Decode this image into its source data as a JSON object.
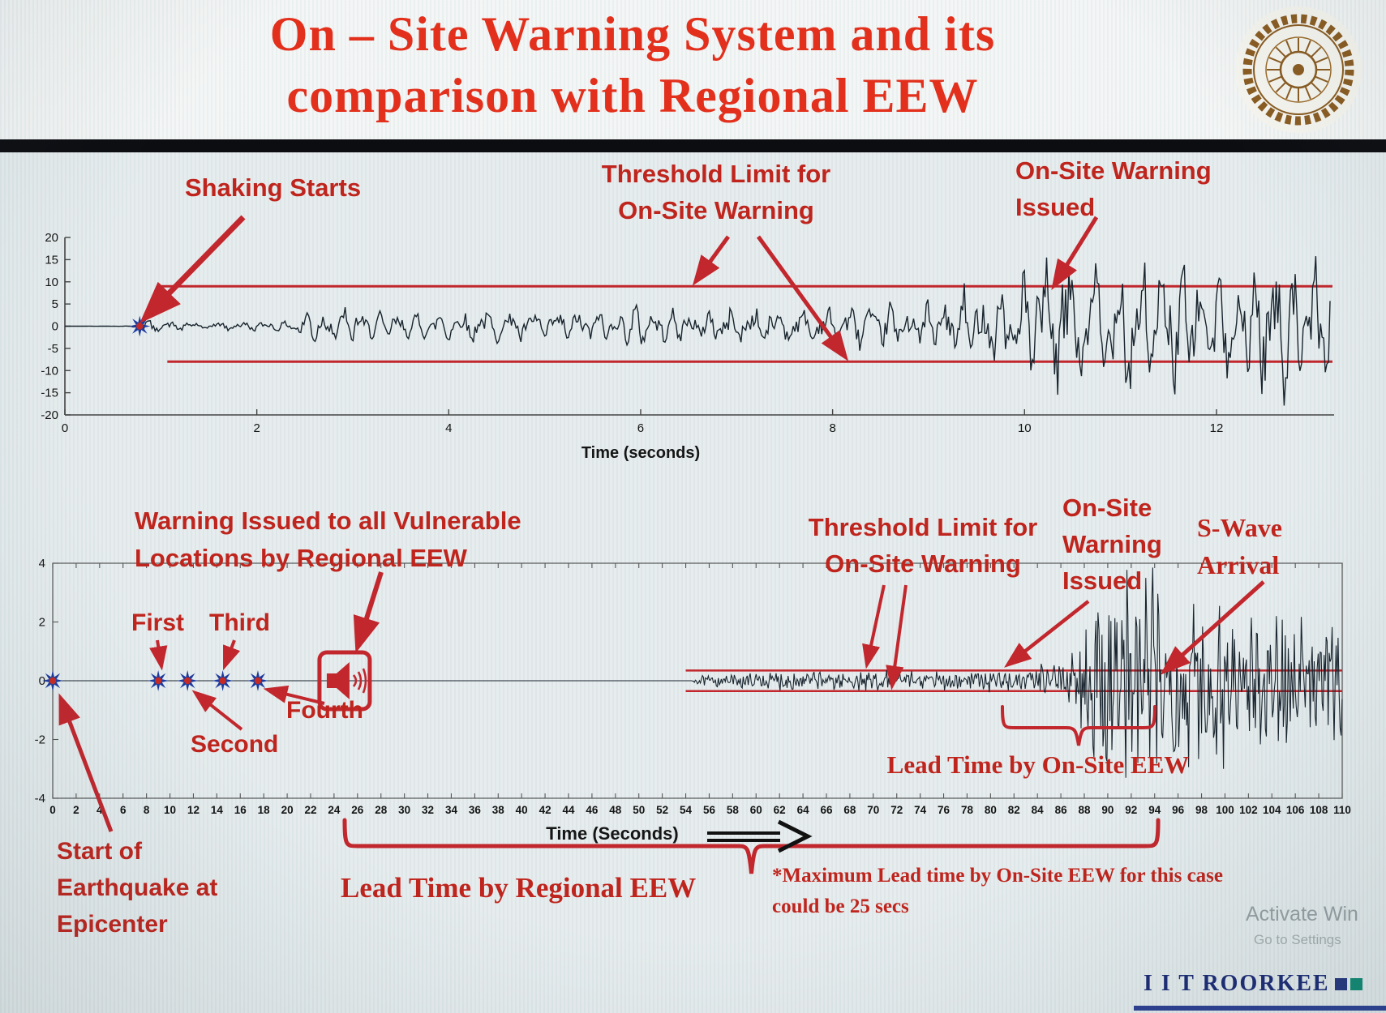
{
  "header": {
    "title_line1": "On – Site Warning System and its",
    "title_line2": "comparison with Regional EEW"
  },
  "top_chart_annotations": {
    "shaking_starts": "Shaking Starts",
    "threshold_line1": "Threshold Limit for",
    "threshold_line2": "On-Site Warning",
    "issued_line1": "On-Site Warning",
    "issued_line2": "Issued"
  },
  "bottom_chart_annotations": {
    "regional_line1": "Warning Issued to all Vulnerable",
    "regional_line2": "Locations by Regional EEW",
    "threshold_line1": "Threshold Limit for",
    "threshold_line2": "On-Site Warning",
    "issued_line1": "On-Site",
    "issued_line2": "Warning",
    "issued_line3": "Issued",
    "swave_line1": "S-Wave",
    "swave_line2": "Arrival",
    "lead_onsite": "Lead Time by On-Site EEW",
    "lead_regional": "Lead Time by Regional EEW",
    "note_line1": "*Maximum Lead time by On-Site EEW for this case",
    "note_line2": "could be 25 secs",
    "epicenter_line1": "Start of",
    "epicenter_line2": "Earthquake at",
    "epicenter_line3": "Epicenter"
  },
  "footer": {
    "brand": "I I T ROORKEE",
    "watermark_line1": "Activate Win",
    "watermark_line2": "Go to Settings"
  },
  "chart_data": [
    {
      "id": "top-seismogram",
      "type": "line",
      "title": "",
      "xlabel": "Time (seconds)",
      "xlim": [
        0,
        12
      ],
      "xticks": [
        0,
        2,
        4,
        6,
        8,
        10,
        12
      ],
      "ylim": [
        -20,
        20
      ],
      "yticks": [
        20,
        15,
        10,
        5,
        0,
        -5,
        -10,
        -15,
        -20
      ],
      "grid": false,
      "series_color": "#18242e",
      "threshold_color": "#c1272d",
      "threshold_upper": 9,
      "threshold_lower": -8,
      "threshold_x_start": 1.0,
      "shaking_start_t": 0.78,
      "warning_issued_t": 10.3,
      "envelope": [
        [
          0,
          0
        ],
        [
          0.7,
          0.05
        ],
        [
          0.78,
          1.6
        ],
        [
          1.2,
          0.9
        ],
        [
          2.3,
          1.0
        ],
        [
          2.55,
          3.6
        ],
        [
          2.9,
          4.2
        ],
        [
          3.3,
          2.6
        ],
        [
          4,
          3.1
        ],
        [
          4.5,
          3.6
        ],
        [
          5,
          3.0
        ],
        [
          5.5,
          3.6
        ],
        [
          6,
          4.2
        ],
        [
          6.5,
          3.1
        ],
        [
          7,
          4.1
        ],
        [
          7.5,
          3.4
        ],
        [
          8,
          4.2
        ],
        [
          8.5,
          4.6
        ],
        [
          9,
          5.2
        ],
        [
          9.3,
          8
        ],
        [
          9.7,
          7
        ],
        [
          10,
          13
        ],
        [
          10.4,
          16
        ],
        [
          10.8,
          12.5
        ],
        [
          11.2,
          17
        ],
        [
          11.6,
          14
        ],
        [
          12,
          13
        ],
        [
          12.5,
          15
        ],
        [
          13.2,
          14
        ]
      ]
    },
    {
      "id": "bottom-seismogram",
      "type": "line",
      "title": "",
      "xlabel": "Time (Seconds)",
      "xlim": [
        0,
        110
      ],
      "xticks": [
        0,
        2,
        4,
        6,
        8,
        10,
        12,
        14,
        16,
        18,
        20,
        22,
        24,
        26,
        28,
        30,
        32,
        34,
        36,
        38,
        40,
        42,
        44,
        46,
        48,
        50,
        52,
        54,
        56,
        58,
        60,
        62,
        64,
        66,
        68,
        70,
        72,
        74,
        76,
        78,
        80,
        82,
        84,
        86,
        88,
        90,
        92,
        94,
        96,
        98,
        100,
        102,
        104,
        106,
        108,
        110
      ],
      "ylim": [
        -4,
        4
      ],
      "yticks": [
        4,
        2,
        0,
        -2,
        -4
      ],
      "grid": false,
      "series_color": "#18242e",
      "threshold_color": "#c1272d",
      "threshold_upper": 0.35,
      "threshold_lower": -0.35,
      "threshold_x_start": 54,
      "epicenter_t": 0,
      "p_wave_detections": [
        {
          "label": "First",
          "t": 9
        },
        {
          "label": "Second",
          "t": 11.5
        },
        {
          "label": "Third",
          "t": 14.5
        },
        {
          "label": "Fourth",
          "t": 17.5
        }
      ],
      "regional_warning_t": 24.9,
      "signal_start_t": 55,
      "onsite_warning_t": 81,
      "s_wave_arrival_t": 94,
      "lead_time_onsite_span": [
        81,
        94
      ],
      "lead_time_regional_span": [
        24.9,
        94.3
      ],
      "envelope": [
        [
          0,
          0
        ],
        [
          54.5,
          0
        ],
        [
          55,
          0.12
        ],
        [
          58,
          0.2
        ],
        [
          62,
          0.28
        ],
        [
          66,
          0.25
        ],
        [
          70,
          0.3
        ],
        [
          74,
          0.25
        ],
        [
          78,
          0.3
        ],
        [
          81,
          0.35
        ],
        [
          84,
          0.4
        ],
        [
          86,
          0.6
        ],
        [
          87.5,
          1.1
        ],
        [
          89,
          2.3
        ],
        [
          90,
          3.2
        ],
        [
          91,
          2.5
        ],
        [
          92,
          3.3
        ],
        [
          93,
          2.7
        ],
        [
          94,
          3.3
        ],
        [
          95,
          2.2
        ],
        [
          96,
          2.9
        ],
        [
          97,
          3.3
        ],
        [
          98,
          2.4
        ],
        [
          99,
          3.0
        ],
        [
          100,
          2.1
        ],
        [
          101,
          2.7
        ],
        [
          102,
          1.9
        ],
        [
          103,
          2.5
        ],
        [
          104,
          1.7
        ],
        [
          105,
          2.2
        ],
        [
          106,
          1.5
        ],
        [
          107,
          2.0
        ],
        [
          108,
          1.4
        ],
        [
          109,
          1.7
        ],
        [
          110,
          1.4
        ]
      ]
    }
  ]
}
